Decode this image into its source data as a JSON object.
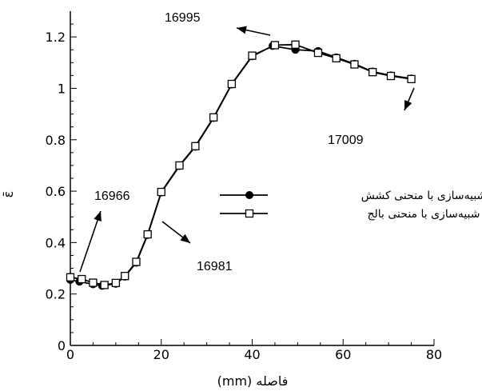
{
  "chart_data": {
    "type": "line",
    "xlabel": "(mm) فاصله",
    "ylabel": "ε̄",
    "xlim": [
      0,
      80
    ],
    "ylim": [
      0,
      1.3
    ],
    "x_ticks": [
      0,
      20,
      40,
      60,
      80
    ],
    "y_ticks": [
      0,
      0.2,
      0.4,
      0.6,
      0.8,
      1,
      1.2
    ],
    "x_tick_labels": [
      "0",
      "20",
      "40",
      "60",
      "80"
    ],
    "y_tick_labels": [
      "0",
      "0.2",
      "0.4",
      "0.6",
      "0.8",
      "1",
      "1.2"
    ],
    "legend_placement": "right",
    "series": [
      {
        "name": "شبیه‌سازی با منحنی کشش",
        "marker": "filled-circle",
        "x": [
          0,
          2,
          5,
          7,
          10,
          12,
          14.5,
          17,
          20,
          24,
          27.5,
          31.5,
          35.5,
          40,
          44.5,
          49.5,
          54.5,
          58.5,
          62.5,
          66.5,
          70.5,
          75
        ],
        "y": [
          0.255,
          0.248,
          0.238,
          0.232,
          0.24,
          0.268,
          0.322,
          0.43,
          0.595,
          0.698,
          0.773,
          0.885,
          1.015,
          1.125,
          1.165,
          1.15,
          1.145,
          1.12,
          1.095,
          1.065,
          1.05,
          1.038
        ]
      },
      {
        "name": "شبیه‌سازی با منحنی بالج",
        "marker": "open-square",
        "x": [
          0,
          2.5,
          5,
          7.5,
          10,
          12,
          14.5,
          17,
          20,
          24,
          27.5,
          31.5,
          35.5,
          40,
          45,
          49.5,
          54.5,
          58.5,
          62.5,
          66.5,
          70.5,
          75
        ],
        "y": [
          0.265,
          0.258,
          0.244,
          0.235,
          0.243,
          0.27,
          0.325,
          0.432,
          0.597,
          0.7,
          0.775,
          0.887,
          1.017,
          1.127,
          1.168,
          1.17,
          1.138,
          1.117,
          1.093,
          1.063,
          1.048,
          1.036
        ]
      }
    ],
    "annotations": [
      {
        "text": "16966",
        "x": 2,
        "y": 0.6
      },
      {
        "text": "16981",
        "x": 26,
        "y": 0.32
      },
      {
        "text": "16995",
        "x": 21,
        "y": 1.23
      },
      {
        "text": "17009",
        "x": 58,
        "y": 0.82
      }
    ]
  }
}
